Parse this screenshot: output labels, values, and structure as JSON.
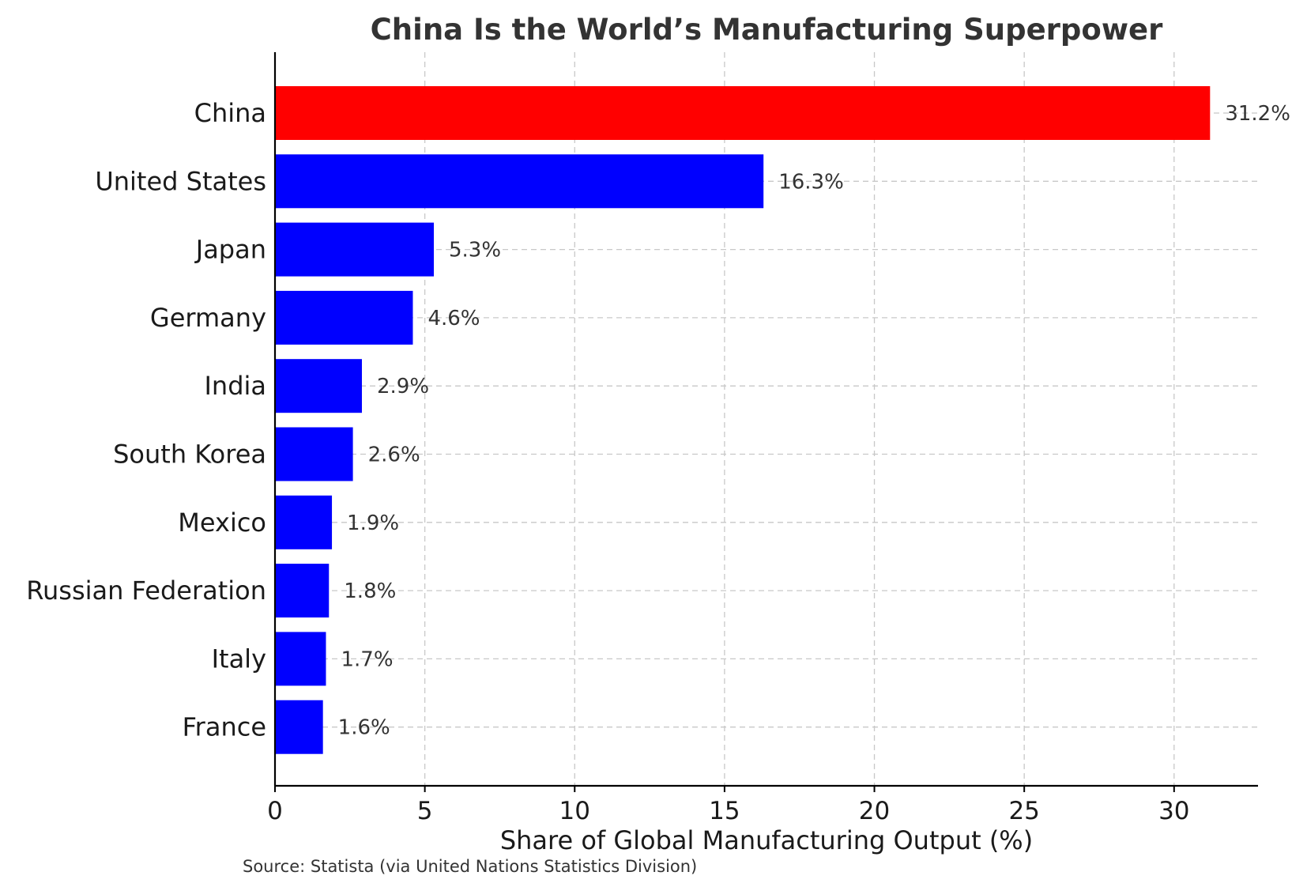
{
  "chart_data": {
    "type": "bar",
    "orientation": "horizontal",
    "title": "China Is the World’s Manufacturing Superpower",
    "xlabel": "Share of Global Manufacturing Output (%)",
    "ylabel": "",
    "source": "Source: Statista (via United Nations Statistics Division)",
    "categories": [
      "China",
      "United States",
      "Japan",
      "Germany",
      "India",
      "South Korea",
      "Mexico",
      "Russian Federation",
      "Italy",
      "France"
    ],
    "values": [
      31.2,
      16.3,
      5.3,
      4.6,
      2.9,
      2.6,
      1.9,
      1.8,
      1.7,
      1.6
    ],
    "data_labels": [
      "31.2%",
      "16.3%",
      "5.3%",
      "4.6%",
      "2.9%",
      "2.6%",
      "1.9%",
      "1.8%",
      "1.7%",
      "1.6%"
    ],
    "colors": [
      "#ff0000",
      "#0000ff",
      "#0000ff",
      "#0000ff",
      "#0000ff",
      "#0000ff",
      "#0000ff",
      "#0000ff",
      "#0000ff",
      "#0000ff"
    ],
    "xlim": [
      0,
      32.8
    ],
    "xticks": [
      0,
      5,
      10,
      15,
      20,
      25,
      30
    ],
    "xtick_labels": [
      "0",
      "5",
      "10",
      "15",
      "20",
      "25",
      "30"
    ],
    "grid": true,
    "legend": "none"
  }
}
